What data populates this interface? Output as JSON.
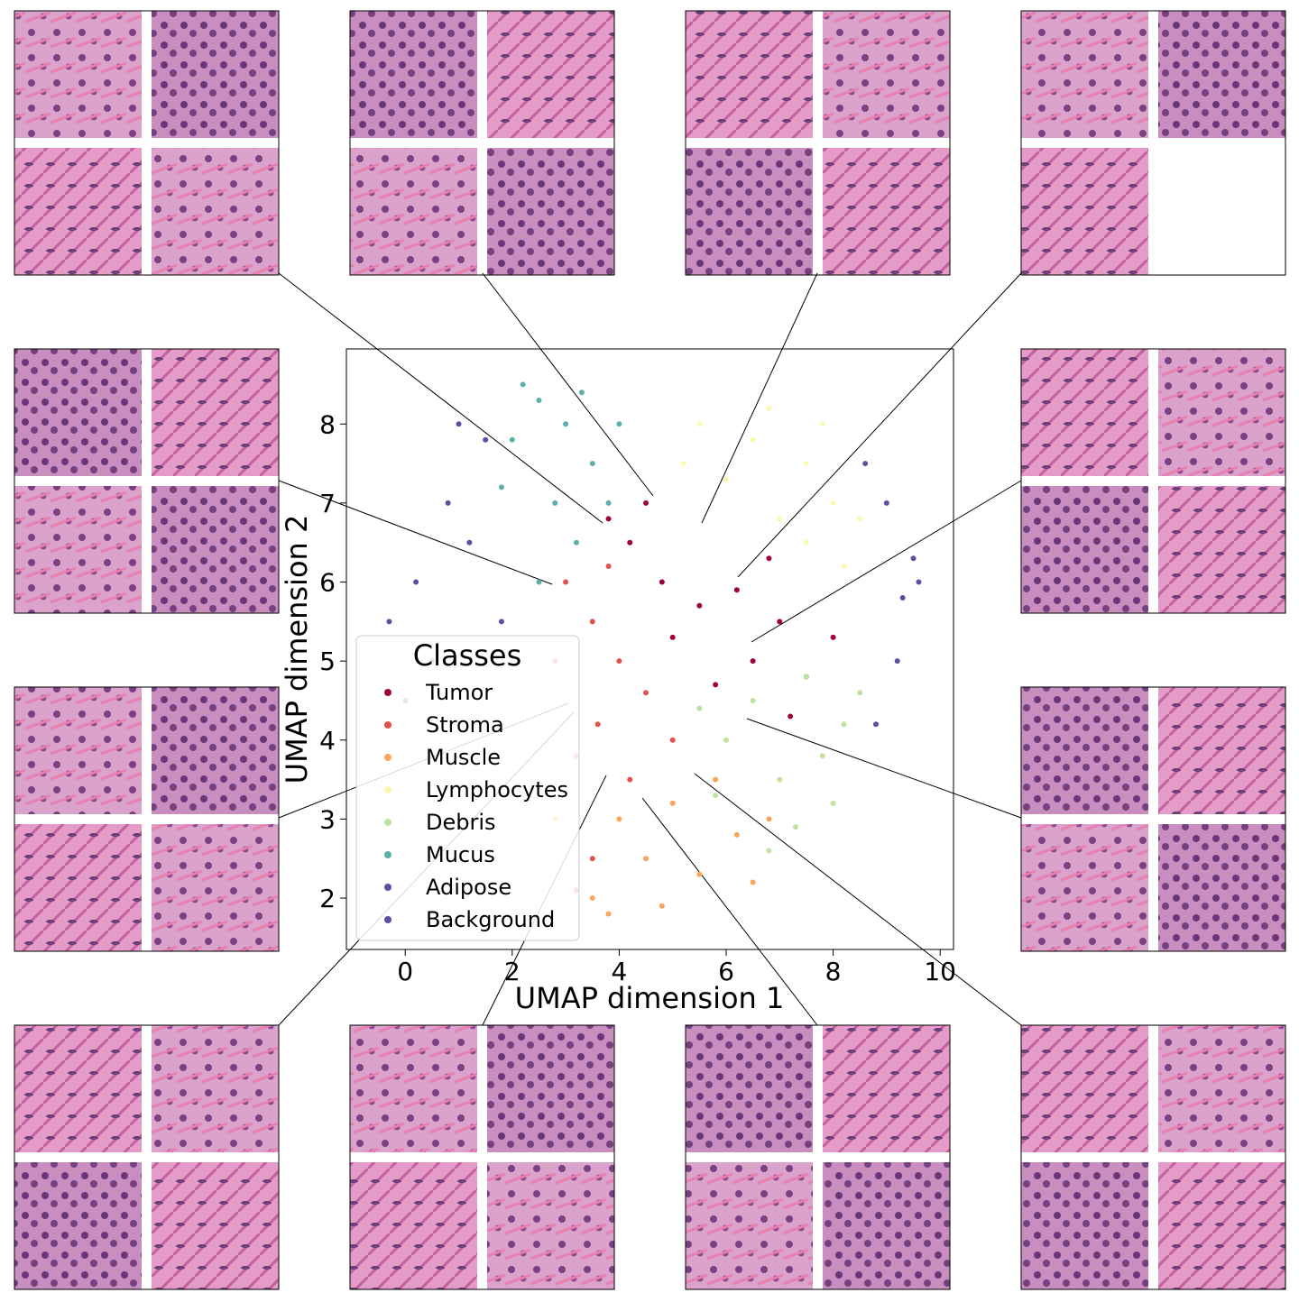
{
  "chart_data": {
    "type": "scatter",
    "x_label": "UMAP dimension 1",
    "y_label": "UMAP dimension 2",
    "legend_title": "Classes",
    "legend": "lower left",
    "xlim": [
      -1.1,
      10.25
    ],
    "ylim": [
      1.35,
      8.95
    ],
    "xticks": [
      0,
      2,
      4,
      6,
      8,
      10
    ],
    "yticks": [
      2,
      3,
      4,
      5,
      6,
      7,
      8
    ],
    "series": [
      {
        "name": "Tumor",
        "color": "#9e0142",
        "x": [
          4.2,
          4.8,
          5.5,
          6.2,
          7.0,
          7.5,
          6.5,
          5.0,
          4.5,
          3.8,
          8.0,
          6.8,
          5.8,
          7.2
        ],
        "y": [
          6.5,
          6.0,
          5.7,
          5.9,
          5.5,
          4.8,
          5.0,
          5.3,
          7.0,
          6.8,
          5.3,
          6.3,
          4.7,
          4.3
        ]
      },
      {
        "name": "Stroma",
        "color": "#e1524a",
        "x": [
          3.5,
          3.0,
          4.0,
          3.6,
          4.5,
          3.2,
          2.8,
          4.2,
          3.8,
          5.0,
          3.5,
          3.2
        ],
        "y": [
          5.5,
          6.0,
          5.0,
          4.2,
          4.6,
          3.8,
          5.0,
          3.5,
          6.2,
          4.0,
          2.5,
          2.1
        ]
      },
      {
        "name": "Muscle",
        "color": "#f9a65a",
        "x": [
          3.5,
          4.5,
          5.5,
          6.2,
          4.0,
          5.0,
          6.5,
          3.8,
          5.8,
          4.8,
          6.8,
          2.8
        ],
        "y": [
          2.0,
          2.5,
          2.3,
          2.8,
          3.0,
          3.2,
          2.2,
          1.8,
          3.5,
          1.9,
          3.0,
          3.0
        ]
      },
      {
        "name": "Lymphocytes",
        "color": "#fbf8b0",
        "x": [
          5.5,
          6.5,
          7.5,
          8.0,
          7.0,
          6.0,
          8.2,
          7.5,
          5.2,
          6.8,
          7.8,
          8.5
        ],
        "y": [
          8.0,
          7.8,
          7.5,
          7.0,
          6.8,
          7.3,
          6.2,
          6.5,
          7.5,
          8.2,
          8.0,
          6.8
        ]
      },
      {
        "name": "Debris",
        "color": "#bfe2a0",
        "x": [
          6.0,
          7.0,
          7.8,
          6.5,
          8.2,
          7.3,
          5.8,
          8.0,
          6.8,
          7.5,
          8.5,
          5.5
        ],
        "y": [
          4.0,
          3.5,
          3.8,
          4.5,
          4.2,
          2.9,
          3.3,
          3.2,
          2.6,
          4.8,
          4.6,
          4.4
        ]
      },
      {
        "name": "Mucus",
        "color": "#5bb1a9",
        "x": [
          2.5,
          3.0,
          2.0,
          3.5,
          2.8,
          3.2,
          1.8,
          4.0,
          2.5,
          3.8,
          2.2,
          3.3
        ],
        "y": [
          8.3,
          8.0,
          7.8,
          7.5,
          7.0,
          6.5,
          7.2,
          8.0,
          6.0,
          7.0,
          8.5,
          8.4
        ]
      },
      {
        "name": "Adipose",
        "color": "#5e4fa2",
        "x": [
          0.2,
          0.8,
          1.5,
          0.5,
          1.2,
          -0.3,
          1.8,
          0.0,
          9.0,
          9.5,
          9.2,
          8.8,
          9.6,
          8.6
        ],
        "y": [
          6.0,
          7.0,
          7.8,
          5.0,
          6.5,
          5.5,
          5.5,
          4.5,
          7.0,
          6.3,
          5.0,
          4.2,
          6.0,
          7.5
        ]
      },
      {
        "name": "Background",
        "color": "#5a4f9e",
        "x": [
          1.0,
          9.3
        ],
        "y": [
          8.0,
          5.8
        ]
      }
    ]
  }
}
